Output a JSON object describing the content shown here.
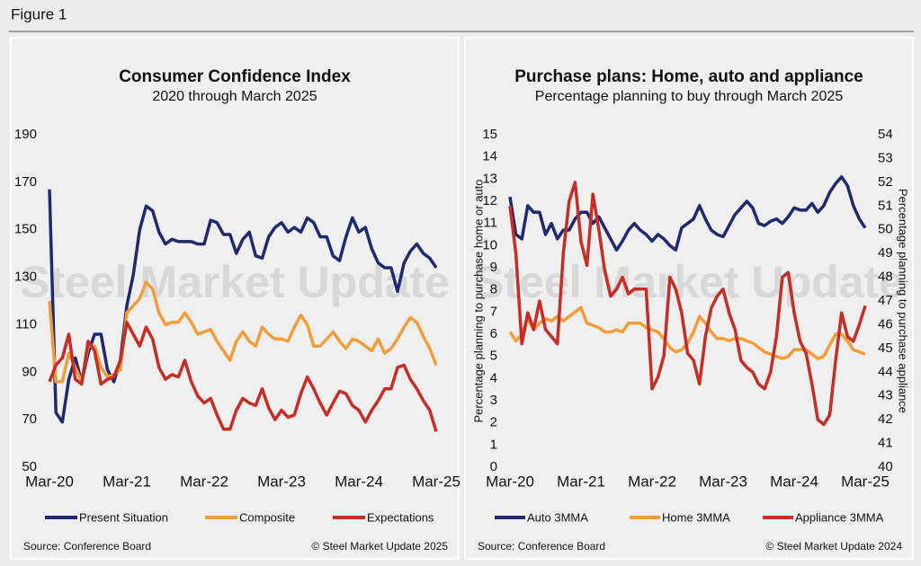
{
  "figure_label": "Figure 1",
  "chart_data": [
    {
      "type": "line",
      "title": "Consumer Confidence Index",
      "subtitle": "2020 through March 2025",
      "watermark": "Steel Market Update",
      "categories": [
        "Mar-20",
        null,
        null,
        null,
        null,
        null,
        null,
        null,
        null,
        null,
        null,
        null,
        "Mar-21",
        null,
        null,
        null,
        null,
        null,
        null,
        null,
        null,
        null,
        null,
        null,
        "Mar-22",
        null,
        null,
        null,
        null,
        null,
        null,
        null,
        null,
        null,
        null,
        null,
        "Mar-23",
        null,
        null,
        null,
        null,
        null,
        null,
        null,
        null,
        null,
        null,
        null,
        "Mar-24",
        null,
        null,
        null,
        null,
        null,
        null,
        null,
        null,
        null,
        null,
        null,
        "Mar-25"
      ],
      "ylim": [
        50,
        190
      ],
      "yticks": [
        50,
        70,
        90,
        110,
        130,
        150,
        170,
        190
      ],
      "series": [
        {
          "name": "Present Situation",
          "color": "#1f2a6e",
          "values": [
            167,
            73,
            69,
            87,
            96,
            86,
            98,
            106,
            106,
            91,
            86,
            95,
            118,
            131,
            150,
            160,
            158,
            149,
            144,
            146,
            145,
            145,
            145,
            144,
            144,
            154,
            153,
            148,
            148,
            140,
            146,
            149,
            139,
            138,
            147,
            151,
            153,
            149,
            151,
            149,
            155,
            153,
            147,
            147,
            139,
            137,
            147,
            155,
            149,
            151,
            142,
            136,
            134,
            134,
            124,
            136,
            141,
            144,
            140,
            138,
            134
          ]
        },
        {
          "name": "Composite",
          "color": "#f39c3a",
          "values": [
            120,
            86,
            86,
            98,
            92,
            86,
            101,
            101,
            92,
            88,
            89,
            91,
            115,
            118,
            121,
            128,
            125,
            115,
            110,
            111,
            111,
            115,
            111,
            106,
            107,
            108,
            103,
            99,
            95,
            103,
            107,
            103,
            101,
            109,
            106,
            104,
            104,
            103,
            109,
            114,
            110,
            101,
            101,
            104,
            107,
            103,
            100,
            104,
            103,
            101,
            99,
            104,
            98,
            100,
            104,
            109,
            113,
            111,
            105,
            100,
            93
          ]
        },
        {
          "name": "Expectations",
          "color": "#c62d27",
          "values": [
            86,
            93,
            96,
            106,
            87,
            85,
            103,
            99,
            85,
            87,
            88,
            95,
            111,
            106,
            101,
            109,
            104,
            92,
            87,
            89,
            88,
            95,
            86,
            80,
            77,
            79,
            72,
            66,
            66,
            74,
            79,
            77,
            76,
            83,
            75,
            70,
            74,
            71,
            72,
            81,
            88,
            83,
            77,
            72,
            77,
            82,
            81,
            76,
            74,
            69,
            74,
            78,
            83,
            83,
            92,
            93,
            87,
            83,
            78,
            74,
            65
          ]
        }
      ],
      "source": "Source: Conference Board",
      "copyright": "© Steel Market Update 2025"
    },
    {
      "type": "line",
      "title": "Purchase plans: Home, auto and appliance",
      "subtitle": "Percentage planning to buy through March 2025",
      "watermark": "Steel Market Update",
      "categories": [
        "Mar-20",
        null,
        null,
        null,
        null,
        null,
        null,
        null,
        null,
        null,
        null,
        null,
        "Mar-21",
        null,
        null,
        null,
        null,
        null,
        null,
        null,
        null,
        null,
        null,
        null,
        "Mar-22",
        null,
        null,
        null,
        null,
        null,
        null,
        null,
        null,
        null,
        null,
        null,
        "Mar-23",
        null,
        null,
        null,
        null,
        null,
        null,
        null,
        null,
        null,
        null,
        null,
        "Mar-24",
        null,
        null,
        null,
        null,
        null,
        null,
        null,
        null,
        null,
        null,
        null,
        "Mar-25"
      ],
      "ylabel": "Percentage planning to purchase home or auto",
      "y2label": "Percentage planning to purchase appliance",
      "ylim": [
        0,
        15
      ],
      "yticks": [
        0,
        1,
        2,
        3,
        4,
        5,
        6,
        7,
        8,
        9,
        10,
        11,
        12,
        13,
        14,
        15
      ],
      "y2lim": [
        40,
        54
      ],
      "y2ticks": [
        40,
        41,
        42,
        43,
        44,
        45,
        46,
        47,
        48,
        49,
        50,
        51,
        52,
        53,
        54
      ],
      "series": [
        {
          "name": "Auto 3MMA",
          "color": "#1f2a6e",
          "values": [
            12.2,
            10.5,
            10.3,
            11.8,
            11.5,
            11.5,
            10.5,
            11,
            10.3,
            10.7,
            10.7,
            11.2,
            11.5,
            11.5,
            11,
            11.3,
            10.8,
            10.3,
            9.8,
            10.2,
            10.7,
            11,
            10.7,
            10.5,
            10.2,
            10.5,
            10.3,
            10,
            9.8,
            10.8,
            11,
            11.2,
            11.8,
            11.2,
            10.7,
            10.5,
            10.4,
            10.9,
            11.4,
            11.7,
            12,
            11.7,
            11,
            10.9,
            11.1,
            11.2,
            11,
            11.3,
            11.7,
            11.6,
            11.6,
            11.9,
            11.5,
            11.8,
            12.4,
            12.8,
            13.1,
            12.7,
            11.8,
            11.2,
            10.8
          ]
        },
        {
          "name": "Home 3MMA",
          "color": "#f39c3a",
          "values": [
            6.1,
            5.7,
            6,
            6.7,
            6.2,
            6.5,
            6.7,
            6.6,
            6.8,
            6.6,
            6.8,
            7,
            7.2,
            6.5,
            6.4,
            6.3,
            6.1,
            6.1,
            6.2,
            6.1,
            6.5,
            6.5,
            6.5,
            6.3,
            6.2,
            6.1,
            5.8,
            5.4,
            5.2,
            5.3,
            5.6,
            6.1,
            6.8,
            6.5,
            6.1,
            5.8,
            5.8,
            5.7,
            5.8,
            5.8,
            5.7,
            5.6,
            5.4,
            5.2,
            5.1,
            5,
            4.9,
            5,
            5.3,
            5.3,
            5.3,
            5.1,
            4.9,
            5,
            5.5,
            6,
            6,
            5.7,
            5.3,
            5.2,
            5.1
          ]
        },
        {
          "name": "Appliance 3MMA",
          "color": "#c62d27",
          "axis": "y2",
          "values": [
            51,
            49,
            45.2,
            46.5,
            45.8,
            47,
            45.8,
            45.5,
            45.2,
            49,
            51.2,
            52,
            49.5,
            48.5,
            51.5,
            50,
            48.3,
            47.2,
            47.5,
            48,
            47.3,
            47.5,
            47.5,
            47.5,
            43.3,
            43.8,
            44.7,
            48,
            47.5,
            46.5,
            44.8,
            44.5,
            43.5,
            45.5,
            46.7,
            47.2,
            47.5,
            46.5,
            45.8,
            44.5,
            44.2,
            44,
            43.5,
            43.3,
            44,
            45.5,
            48,
            48.2,
            46.5,
            45.3,
            44.8,
            43.5,
            42,
            41.8,
            42.2,
            44.5,
            46.5,
            45.5,
            45.3,
            46,
            46.8
          ]
        }
      ],
      "source": "Source: Conference Board",
      "copyright": "© Steel Market Update 2024"
    }
  ]
}
